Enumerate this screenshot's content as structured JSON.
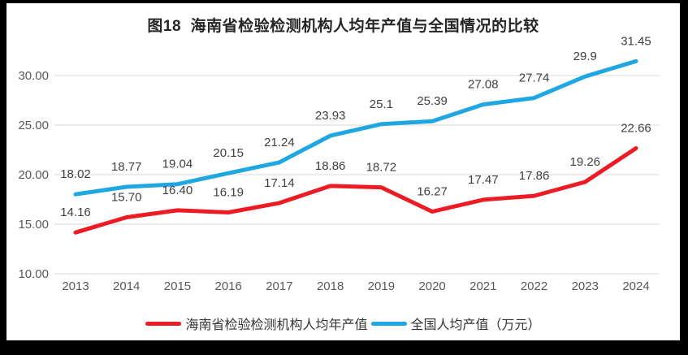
{
  "chart_data": {
    "type": "line",
    "title": "图18  海南省检验检测机构人均年产值与全国情况的比较",
    "categories": [
      "2013",
      "2014",
      "2015",
      "2016",
      "2017",
      "2018",
      "2019",
      "2020",
      "2021",
      "2022",
      "2023",
      "2024"
    ],
    "series": [
      {
        "name": "海南省检验检测机构人均年产值",
        "color": "#ED1C24",
        "values": [
          14.16,
          15.7,
          16.4,
          16.19,
          17.14,
          18.86,
          18.72,
          16.27,
          17.47,
          17.86,
          19.26,
          22.66
        ],
        "labels": [
          "14.16",
          "15.70",
          "16.40",
          "16.19",
          "17.14",
          "18.86",
          "18.72",
          "16.27",
          "17.47",
          "17.86",
          "19.26",
          "22.66"
        ]
      },
      {
        "name": "全国人均产值（万元）",
        "color": "#1FA7E2",
        "values": [
          18.02,
          18.77,
          19.04,
          20.15,
          21.24,
          23.93,
          25.1,
          25.39,
          27.08,
          27.74,
          29.9,
          31.45
        ],
        "labels": [
          "18.02",
          "18.77",
          "19.04",
          "20.15",
          "21.24",
          "23.93",
          "25.1",
          "25.39",
          "27.08",
          "27.74",
          "29.9",
          "31.45"
        ]
      }
    ],
    "y_axis": {
      "ticks": [
        {
          "value": 10,
          "label": "10.00"
        },
        {
          "value": 15,
          "label": "15.00"
        },
        {
          "value": 20,
          "label": "20.00"
        },
        {
          "value": 25,
          "label": "25.00"
        },
        {
          "value": 30,
          "label": "30.00"
        }
      ]
    },
    "ylim": [
      10,
      30
    ],
    "grid": true,
    "legend_position": "bottom"
  },
  "colors": {
    "frame": "#000000",
    "background": "#FFFFFF",
    "gridline": "#D9D9D9",
    "tick_text": "#595959",
    "data_label_text": "#404040",
    "title_text": "#262626",
    "legend_text": "#333333"
  }
}
